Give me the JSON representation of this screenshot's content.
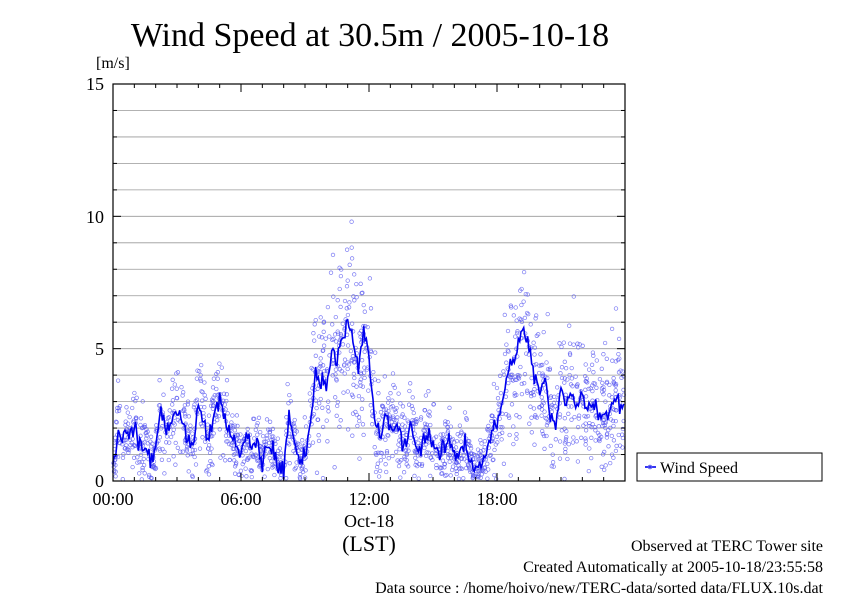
{
  "chart_data": {
    "type": "scatter",
    "title": "Wind Speed at 30.5m / 2005-10-18",
    "ylabel_unit": "[m/s]",
    "xlabel": "(LST)",
    "date_label": "Oct-18",
    "ylim": [
      0,
      15
    ],
    "y_ticks": [
      "0",
      "5",
      "10",
      "15"
    ],
    "xlim_hours": [
      0,
      24
    ],
    "x_ticks": [
      "00:00",
      "06:00",
      "12:00",
      "18:00"
    ],
    "grid": true,
    "legend": {
      "position": "right",
      "label": "Wind Speed"
    },
    "series": [
      {
        "name": "Wind Speed",
        "style": "line with scattered raw points",
        "x_hours": [
          0.0,
          0.25,
          0.5,
          0.75,
          1.0,
          1.25,
          1.5,
          1.75,
          2.0,
          2.25,
          2.5,
          2.75,
          3.0,
          3.25,
          3.5,
          3.75,
          4.0,
          4.25,
          4.5,
          4.75,
          5.0,
          5.25,
          5.5,
          5.75,
          6.0,
          6.25,
          6.5,
          6.75,
          7.0,
          7.25,
          7.5,
          7.75,
          8.0,
          8.25,
          8.5,
          8.75,
          9.0,
          9.25,
          9.5,
          9.75,
          10.0,
          10.25,
          10.5,
          10.75,
          11.0,
          11.25,
          11.5,
          11.75,
          12.0,
          12.25,
          12.5,
          12.75,
          13.0,
          13.25,
          13.5,
          13.75,
          14.0,
          14.25,
          14.5,
          14.75,
          15.0,
          15.25,
          15.5,
          15.75,
          16.0,
          16.25,
          16.5,
          16.75,
          17.0,
          17.25,
          17.5,
          17.75,
          18.0,
          18.25,
          18.5,
          18.75,
          19.0,
          19.25,
          19.5,
          19.75,
          20.0,
          20.25,
          20.5,
          20.75,
          21.0,
          21.25,
          21.5,
          21.75,
          22.0,
          22.25,
          22.5,
          22.75,
          23.0,
          23.25,
          23.5,
          23.75
        ],
        "values": [
          0.5,
          2.0,
          1.6,
          1.8,
          2.1,
          1.2,
          1.3,
          0.8,
          1.3,
          2.7,
          1.8,
          2.5,
          2.6,
          2.2,
          1.7,
          1.1,
          2.9,
          2.3,
          1.5,
          2.6,
          3.0,
          2.4,
          1.9,
          1.3,
          0.9,
          1.8,
          1.1,
          1.6,
          0.6,
          1.4,
          1.2,
          0.6,
          0.3,
          2.4,
          1.6,
          0.5,
          1.2,
          2.2,
          4.0,
          3.8,
          3.6,
          5.0,
          4.6,
          5.6,
          5.9,
          5.3,
          4.1,
          5.7,
          4.6,
          2.5,
          1.6,
          2.4,
          1.9,
          2.2,
          1.6,
          1.3,
          2.3,
          1.1,
          1.4,
          1.9,
          1.4,
          0.9,
          1.2,
          1.6,
          0.9,
          1.1,
          1.5,
          0.8,
          0.5,
          0.7,
          1.1,
          1.7,
          2.2,
          3.0,
          4.0,
          4.6,
          5.2,
          5.6,
          5.1,
          4.0,
          3.3,
          3.8,
          2.4,
          2.1,
          3.4,
          3.0,
          3.5,
          2.8,
          3.3,
          2.6,
          3.2,
          2.4,
          2.7,
          2.5,
          3.3,
          2.9
        ],
        "scatter_spread": [
          0.5,
          0.8,
          0.7,
          0.7,
          0.8,
          0.6,
          0.6,
          0.5,
          0.6,
          0.9,
          0.7,
          0.9,
          0.9,
          0.8,
          0.7,
          0.6,
          1.0,
          0.8,
          0.7,
          0.9,
          1.0,
          0.9,
          0.7,
          0.6,
          0.5,
          0.7,
          0.6,
          0.6,
          0.4,
          0.6,
          0.5,
          0.4,
          0.3,
          0.9,
          0.7,
          0.4,
          0.6,
          0.9,
          1.4,
          1.4,
          1.4,
          1.7,
          1.6,
          1.9,
          2.0,
          1.8,
          1.5,
          1.9,
          1.6,
          1.0,
          0.7,
          0.9,
          0.8,
          0.9,
          0.7,
          0.6,
          0.9,
          0.5,
          0.6,
          0.8,
          0.6,
          0.5,
          0.6,
          0.7,
          0.5,
          0.5,
          0.6,
          0.4,
          0.3,
          0.4,
          0.5,
          0.7,
          0.9,
          1.1,
          1.4,
          1.6,
          1.7,
          1.8,
          1.7,
          1.5,
          1.3,
          1.5,
          1.1,
          1.0,
          1.3,
          1.2,
          1.3,
          1.2,
          1.3,
          1.1,
          1.3,
          1.1,
          1.2,
          1.1,
          1.3,
          1.2
        ]
      }
    ]
  },
  "footer": {
    "line1": "Observed at TERC Tower site",
    "line2": "Created Automatically at 2005-10-18/23:55:58",
    "line3": "Data source : /home/hoivo/new/TERC-data/sorted  data/FLUX.10s.dat"
  },
  "colors": {
    "line": "#0000ee",
    "points": "#5a5af0",
    "grid": "#999999",
    "axis": "#000000"
  }
}
